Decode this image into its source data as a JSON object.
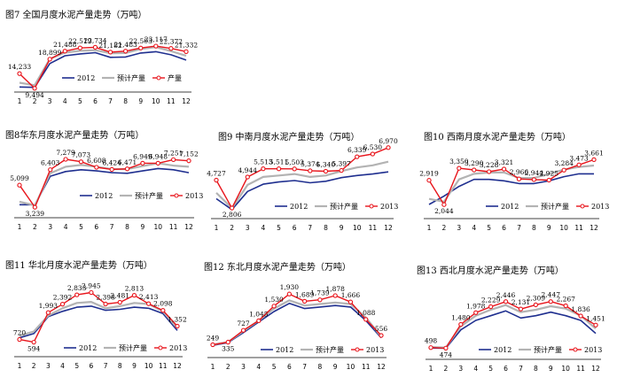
{
  "colors": {
    "s2012": "#1f2f8f",
    "forecast": "#b3b3b3",
    "s2013": "#e8141b"
  },
  "chart_data": [
    {
      "type": "line",
      "title": "图7  全国月度水泥产量走势（万吨）",
      "categories": [
        "1",
        "2",
        "3",
        "4",
        "5",
        "6",
        "7",
        "8",
        "9",
        "10",
        "11",
        "12"
      ],
      "ylim": [
        8000,
        26000
      ],
      "legend": [
        "2012",
        "预计产量",
        "产量"
      ],
      "series": [
        {
          "name": "2012",
          "values": [
            9900,
            9800,
            17500,
            20000,
            20600,
            21000,
            19500,
            19600,
            20900,
            21300,
            20300,
            18600
          ]
        },
        {
          "name": "预计产量",
          "values": [
            11300,
            10500,
            19000,
            21000,
            21600,
            21800,
            20800,
            20900,
            22200,
            22800,
            21500,
            20000
          ]
        },
        {
          "name": "产量",
          "values": [
            14233,
            9494,
            18899,
            21488,
            22519,
            22734,
            21182,
            21483,
            22503,
            23117,
            22372,
            21332
          ]
        }
      ],
      "data_labels": [
        "14,233",
        "9,494",
        "18,899",
        "21,488",
        "22,519",
        "22,734",
        "21,182",
        "21,483",
        "22,503",
        "23,117",
        "22,372",
        "21,332"
      ]
    },
    {
      "type": "line",
      "title": "图8华东月度水泥产量走势（万吨）",
      "categories": [
        "1",
        "2",
        "3",
        "4",
        "5",
        "6",
        "7",
        "8",
        "9",
        "10",
        "11",
        "12"
      ],
      "ylim": [
        2800,
        7800
      ],
      "legend": [
        "2012",
        "预计产量",
        "2013"
      ],
      "series": [
        {
          "name": "2012",
          "values": [
            3450,
            3450,
            5850,
            6250,
            6400,
            6300,
            6150,
            6100,
            6300,
            6500,
            6400,
            6150
          ]
        },
        {
          "name": "预计产量",
          "values": [
            3700,
            3400,
            6100,
            6650,
            6800,
            6650,
            6450,
            6450,
            6700,
            6950,
            6750,
            6650
          ]
        },
        {
          "name": "2013",
          "values": [
            5099,
            3239,
            6403,
            7279,
            7073,
            6608,
            6424,
            6471,
            6949,
            6948,
            7251,
            7152
          ]
        }
      ],
      "data_labels": [
        "5,099",
        "3,239",
        "6,403",
        "7,279",
        "7,073",
        "6,608",
        "6,424",
        "6,471",
        "6,949",
        "6,948",
        "7,251",
        "7,152"
      ]
    },
    {
      "type": "line",
      "title": "图9  中南月度水泥产量走势（万吨）",
      "categories": [
        "1",
        "2",
        "3",
        "4",
        "5",
        "6",
        "7",
        "8",
        "9",
        "10",
        "11",
        "12"
      ],
      "ylim": [
        2200,
        7200
      ],
      "legend": [
        "2012",
        "预计产量",
        "2013"
      ],
      "series": [
        {
          "name": "2012",
          "values": [
            3450,
            2700,
            3950,
            4450,
            4600,
            4700,
            4550,
            4650,
            4900,
            5050,
            5150,
            5300
          ]
        },
        {
          "name": "预计产量",
          "values": [
            3850,
            2800,
            4400,
            4950,
            5050,
            5150,
            4950,
            5050,
            5350,
            5600,
            5750,
            6000
          ]
        },
        {
          "name": "2013",
          "values": [
            4727,
            2806,
            4944,
            5513,
            5511,
            5503,
            5374,
            5340,
            5397,
            6339,
            6530,
            6970
          ]
        }
      ],
      "data_labels": [
        "4,727",
        "2,806",
        "4,944",
        "5,513",
        "5,511",
        "5,503",
        "5,374",
        "5,340",
        "5,397",
        "6,339",
        "6,530",
        "6,970"
      ]
    },
    {
      "type": "line",
      "title": "图10  西南月度水泥产量走势（万吨）",
      "categories": [
        "1",
        "2",
        "3",
        "4",
        "5",
        "6",
        "7",
        "8",
        "9",
        "10",
        "11",
        "12"
      ],
      "ylim": [
        1700,
        3800
      ],
      "legend": [
        "2012",
        "预计产量",
        "2013"
      ],
      "series": [
        {
          "name": "2012",
          "values": [
            2050,
            2350,
            2700,
            2950,
            2950,
            2900,
            2800,
            2800,
            2900,
            3050,
            3150,
            3150
          ]
        },
        {
          "name": "预计产量",
          "values": [
            2250,
            2150,
            2950,
            3150,
            3200,
            3200,
            3000,
            3000,
            3150,
            3300,
            3400,
            3450
          ]
        },
        {
          "name": "2013",
          "values": [
            2919,
            2044,
            3350,
            3290,
            3228,
            3321,
            2966,
            2944,
            2925,
            3284,
            3473,
            3661
          ]
        }
      ],
      "data_labels": [
        "2,919",
        "2,044",
        "3,350",
        "3,290",
        "3,228",
        "3,321",
        "2,966",
        "2,944",
        "2,925",
        "3,284",
        "3,473",
        "3,661"
      ]
    },
    {
      "type": "line",
      "title": "图11 华北月度水泥产量走势（万吨）",
      "categories": [
        "1",
        "2",
        "3",
        "4",
        "5",
        "6",
        "7",
        "8",
        "9",
        "10",
        "11",
        "12"
      ],
      "ylim": [
        200,
        3300
      ],
      "legend": [
        "2012",
        "预计产量",
        "2013"
      ],
      "series": [
        {
          "name": "2012",
          "values": [
            800,
            1000,
            1800,
            2050,
            2250,
            2300,
            2100,
            2150,
            2250,
            2200,
            1950,
            1150
          ]
        },
        {
          "name": "预计产量",
          "values": [
            900,
            1100,
            1850,
            2200,
            2450,
            2500,
            2200,
            2300,
            2450,
            2400,
            2050,
            1250
          ]
        },
        {
          "name": "2013",
          "values": [
            720,
            594,
            1993,
            2392,
            2833,
            2945,
            2398,
            2481,
            2813,
            2413,
            2098,
            1352
          ]
        }
      ],
      "data_labels": [
        "720",
        "594",
        "1,993",
        "2,392",
        "2,833",
        "2,945",
        "2,398",
        "2,481",
        "2,813",
        "2,413",
        "2,098",
        "1,352"
      ]
    },
    {
      "type": "line",
      "title": "图12 东北月度水泥产量走势（万吨）",
      "categories": [
        "1",
        "2",
        "3",
        "4",
        "5",
        "6",
        "7",
        "8",
        "9",
        "10",
        "11",
        "12"
      ],
      "ylim": [
        0,
        2200
      ],
      "legend": [
        "2012",
        "预计产量",
        "2013"
      ],
      "series": [
        {
          "name": "2012",
          "values": [
            230,
            320,
            650,
            1000,
            1350,
            1620,
            1450,
            1500,
            1550,
            1500,
            1050,
            480
          ]
        },
        {
          "name": "预计产量",
          "values": [
            250,
            340,
            700,
            1050,
            1450,
            1720,
            1550,
            1600,
            1650,
            1600,
            1150,
            520
          ]
        },
        {
          "name": "2013",
          "values": [
            249,
            335,
            727,
            1045,
            1530,
            1930,
            1689,
            1739,
            1878,
            1666,
            1088,
            556
          ]
        }
      ],
      "data_labels": [
        "249",
        "335",
        "727",
        "1,045",
        "1,530",
        "1,930",
        "1,689",
        "1,739",
        "1,878",
        "1,666",
        "1,088",
        "556"
      ]
    },
    {
      "type": "line",
      "title": "图13  西北月度水泥产量走势（万吨）",
      "categories": [
        "1",
        "2",
        "3",
        "4",
        "5",
        "6",
        "7",
        "8",
        "9",
        "10",
        "11",
        "12"
      ],
      "ylim": [
        300,
        3000
      ],
      "legend": [
        "2012",
        "预计产量",
        "2013"
      ],
      "series": [
        {
          "name": "2012",
          "values": [
            480,
            470,
            1250,
            1650,
            1850,
            2050,
            1750,
            1850,
            2000,
            1850,
            1650,
            1100
          ]
        },
        {
          "name": "预计产量",
          "values": [
            520,
            500,
            1400,
            1850,
            2100,
            2300,
            2000,
            2100,
            2250,
            2150,
            1850,
            1300
          ]
        },
        {
          "name": "2013",
          "values": [
            498,
            474,
            1480,
            1978,
            2229,
            2446,
            2131,
            2309,
            2447,
            2267,
            1836,
            1451
          ]
        }
      ],
      "data_labels": [
        "498",
        "474",
        "1,480",
        "1,978",
        "2,229",
        "2,446",
        "2,131",
        "2,309",
        "2,447",
        "2,267",
        "1,836",
        "1,451"
      ]
    }
  ]
}
